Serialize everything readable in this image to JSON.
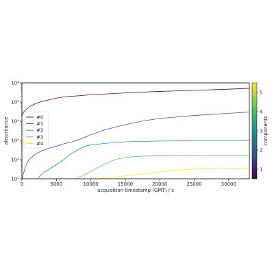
{
  "chart_data": {
    "type": "line",
    "xlabel": "acquisition timestamp (GMT) / s",
    "ylabel": "absorbance",
    "xlim": [
      0,
      33000
    ],
    "ylim": [
      10,
      1000000
    ],
    "yscale": "log",
    "x_ticks": [
      0,
      5000,
      10000,
      15000,
      20000,
      25000,
      30000
    ],
    "y_ticks": [
      {
        "value": 10,
        "label": "10¹"
      },
      {
        "value": 100,
        "label": "10²"
      },
      {
        "value": 1000,
        "label": "10³"
      },
      {
        "value": 10000,
        "label": "10⁴"
      },
      {
        "value": 100000,
        "label": "10⁵"
      },
      {
        "value": 1000000,
        "label": "10⁶"
      }
    ],
    "grid": false,
    "legend_position": "center-left",
    "series": [
      {
        "name": "#0",
        "color": "#440154",
        "x": [
          0,
          300,
          1000,
          2000,
          3000,
          5000,
          6500,
          8000,
          10000,
          15000,
          20000,
          25000,
          30000,
          33000
        ],
        "y": [
          20000,
          32000,
          55000,
          85000,
          110000,
          160000,
          195000,
          210000,
          240000,
          300000,
          360000,
          410000,
          470000,
          520000
        ]
      },
      {
        "name": "#1",
        "color": "#3b528b",
        "x": [
          0,
          500,
          1000,
          2000,
          3000,
          4000,
          5000,
          6000,
          7000,
          7800,
          9000,
          10000,
          12000,
          14000,
          16000,
          18000,
          20000,
          25000,
          30000,
          33000
        ],
        "y": [
          10,
          40,
          100,
          200,
          300,
          400,
          500,
          650,
          800,
          950,
          1400,
          2000,
          3500,
          5500,
          8000,
          11000,
          14000,
          20000,
          26000,
          30000
        ]
      },
      {
        "name": "#2",
        "color": "#21918c",
        "x": [
          2300,
          3000,
          4000,
          5000,
          6000,
          7000,
          8000,
          9000,
          10000,
          12000,
          15000,
          20000,
          25000,
          30000,
          33000
        ],
        "y": [
          10,
          20,
          32,
          55,
          95,
          190,
          300,
          480,
          580,
          700,
          850,
          930,
          950,
          960,
          960
        ]
      },
      {
        "name": "#3",
        "color": "#5ec962",
        "x": [
          7800,
          8500,
          10000,
          11000,
          12000,
          13000,
          14000,
          15000,
          17000,
          20000,
          25000,
          30000,
          33000
        ],
        "y": [
          10,
          13,
          24,
          38,
          58,
          85,
          110,
          130,
          150,
          158,
          165,
          170,
          172
        ]
      },
      {
        "name": "#4",
        "color": "#fde725",
        "x": [
          11000,
          13000,
          15000,
          17000,
          19000,
          21000,
          23000,
          25000,
          27000,
          30000,
          33000
        ],
        "y": [
          10,
          12,
          14,
          17,
          21,
          25,
          29,
          32,
          34,
          35,
          36
        ]
      }
    ],
    "colorbar": {
      "label": "components",
      "range": [
        0.5,
        5.5
      ],
      "ticks": [
        1,
        2,
        3,
        4,
        5
      ],
      "colormap": [
        "#440154",
        "#3b528b",
        "#21918c",
        "#5ec962",
        "#fde725"
      ]
    }
  }
}
